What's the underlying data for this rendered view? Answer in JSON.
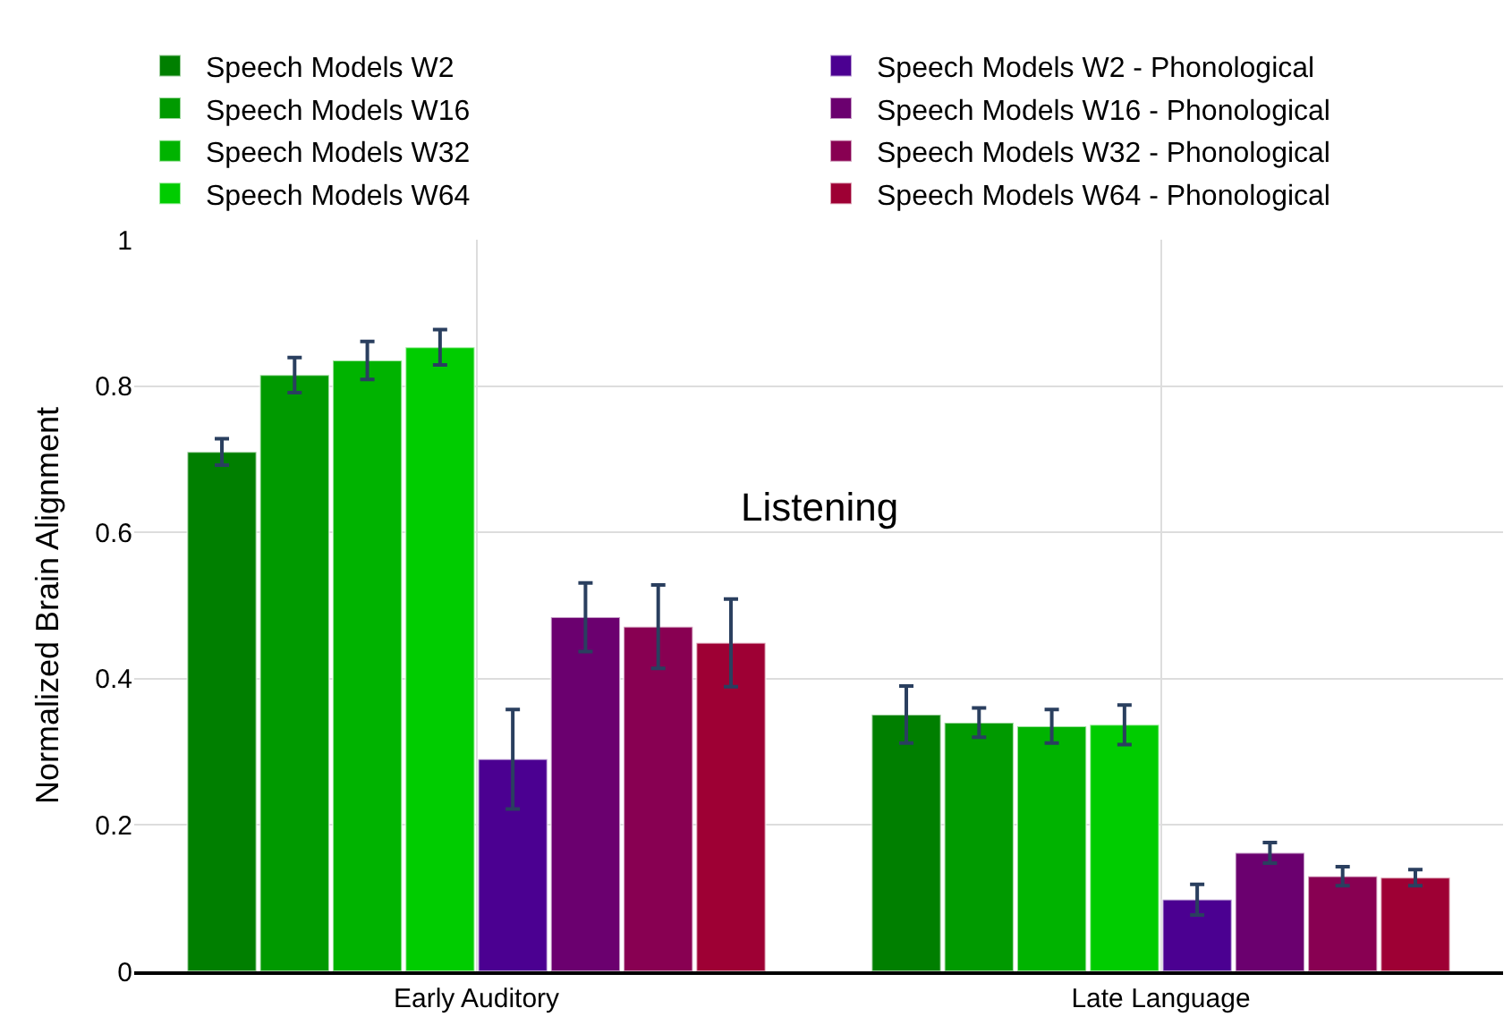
{
  "chart_data": {
    "type": "bar",
    "ylabel": "Normalized Brain Alignment",
    "categories": [
      "Early Auditory",
      "Late Language"
    ],
    "series": [
      {
        "name": "Speech Models W2",
        "color": "#007f00",
        "values": [
          0.71,
          0.351
        ],
        "errors": [
          0.018,
          0.039
        ]
      },
      {
        "name": "Speech Models W16",
        "color": "#009a00",
        "values": [
          0.815,
          0.34
        ],
        "errors": [
          0.024,
          0.02
        ]
      },
      {
        "name": "Speech Models W32",
        "color": "#00b300",
        "values": [
          0.835,
          0.335
        ],
        "errors": [
          0.026,
          0.023
        ]
      },
      {
        "name": "Speech Models W64",
        "color": "#00cc00",
        "values": [
          0.853,
          0.337
        ],
        "errors": [
          0.024,
          0.027
        ]
      },
      {
        "name": "Speech Models W2 - Phonological",
        "color": "#4b0091",
        "values": [
          0.29,
          0.098
        ],
        "errors": [
          0.068,
          0.021
        ]
      },
      {
        "name": "Speech Models W16 - Phonological",
        "color": "#6b006f",
        "values": [
          0.484,
          0.162
        ],
        "errors": [
          0.047,
          0.014
        ]
      },
      {
        "name": "Speech Models W32 - Phonological",
        "color": "#880052",
        "values": [
          0.471,
          0.13
        ],
        "errors": [
          0.057,
          0.013
        ]
      },
      {
        "name": "Speech Models W64 - Phonological",
        "color": "#9e0034",
        "values": [
          0.449,
          0.128
        ],
        "errors": [
          0.06,
          0.011
        ]
      }
    ],
    "ylim": [
      0,
      1
    ],
    "yticks": [
      0,
      0.2,
      0.4,
      0.6,
      0.8,
      1
    ],
    "annotations": [
      "Listening"
    ],
    "grid": true,
    "legend": "top"
  }
}
